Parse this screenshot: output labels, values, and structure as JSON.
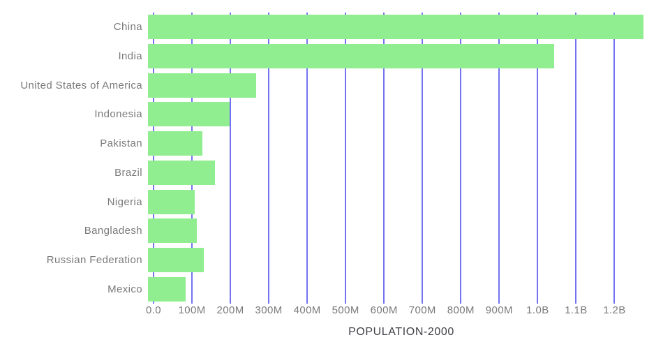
{
  "chart_data": {
    "type": "bar",
    "orientation": "horizontal",
    "title": "POPULATION-2000",
    "categories": [
      "China",
      "India",
      "United States of America",
      "Indonesia",
      "Pakistan",
      "Brazil",
      "Nigeria",
      "Bangladesh",
      "Russian Federation",
      "Mexico"
    ],
    "series": [
      {
        "name": "POPULATION-2000",
        "values_millions": [
          1290,
          1057,
          282,
          212,
          142,
          175,
          122,
          128,
          146,
          99
        ]
      }
    ],
    "xlim_millions": [
      0,
      1290
    ],
    "x_axis": {
      "ticks": [
        {
          "label": "0.0",
          "value_millions": 0
        },
        {
          "label": "100M",
          "value_millions": 100
        },
        {
          "label": "200M",
          "value_millions": 200
        },
        {
          "label": "300M",
          "value_millions": 300
        },
        {
          "label": "400M",
          "value_millions": 400
        },
        {
          "label": "500M",
          "value_millions": 500
        },
        {
          "label": "600M",
          "value_millions": 600
        },
        {
          "label": "700M",
          "value_millions": 700
        },
        {
          "label": "800M",
          "value_millions": 800
        },
        {
          "label": "900M",
          "value_millions": 900
        },
        {
          "label": "1.0B",
          "value_millions": 1000
        },
        {
          "label": "1.1B",
          "value_millions": 1100
        },
        {
          "label": "1.2B",
          "value_millions": 1200
        }
      ]
    },
    "grid": "vertical-only",
    "legend": "none",
    "colors": {
      "bar": "#90ee90",
      "gridline": "#7373f1",
      "category_label": "#7a7a7a",
      "tick_label": "#7a7a7a",
      "title": "#3f3f46",
      "background": "#ffffff"
    }
  }
}
